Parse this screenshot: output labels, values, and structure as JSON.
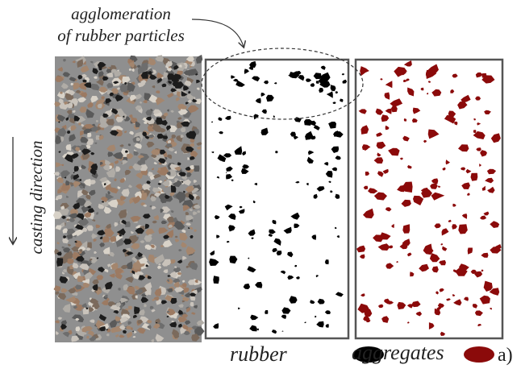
{
  "annotation": {
    "line1": "agglomeration",
    "line2": "of rubber particles"
  },
  "side_label": "casting direction",
  "legend": {
    "rubber": "rubber",
    "aggregates": "aggregates"
  },
  "panel_label": "a)"
}
